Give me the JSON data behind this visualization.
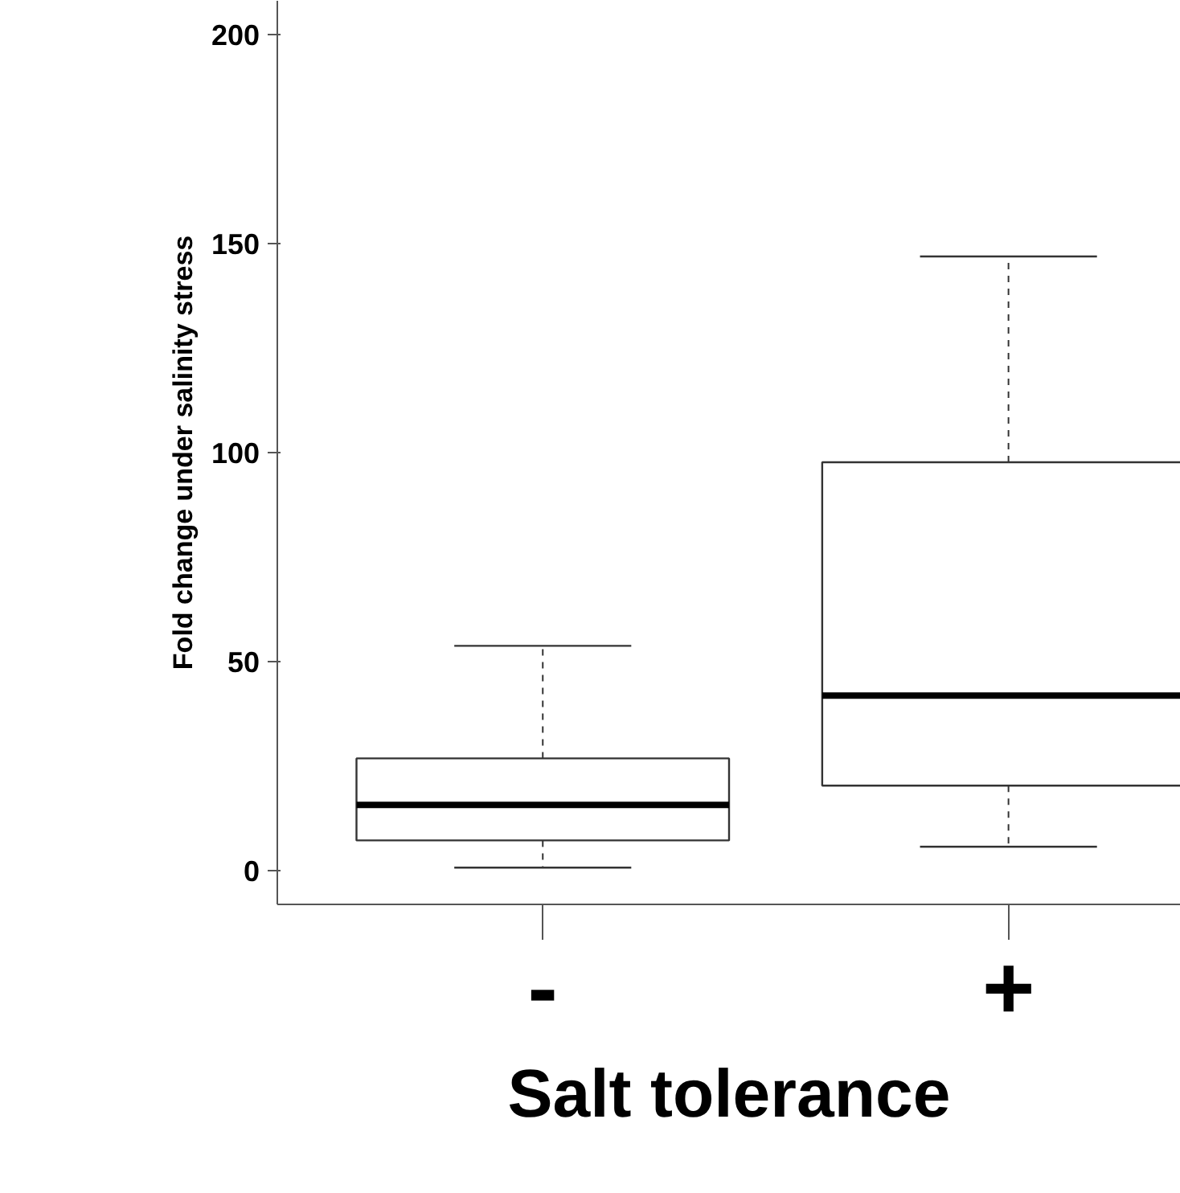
{
  "chart_data": {
    "type": "box",
    "categories": [
      "-",
      "+"
    ],
    "xlabel": "Salt tolerance",
    "ylabel": "Fold change under salinity stress",
    "ylim": [
      -8,
      208
    ],
    "yticks": [
      0,
      50,
      100,
      150,
      200
    ],
    "grid": false,
    "boxes": [
      {
        "low": 0.8,
        "q1": 7.3,
        "median": 15.8,
        "q3": 26.9,
        "high": 53.8
      },
      {
        "low": 5.8,
        "q1": 20.4,
        "median": 41.9,
        "q3": 97.7,
        "high": 146.9
      }
    ]
  }
}
